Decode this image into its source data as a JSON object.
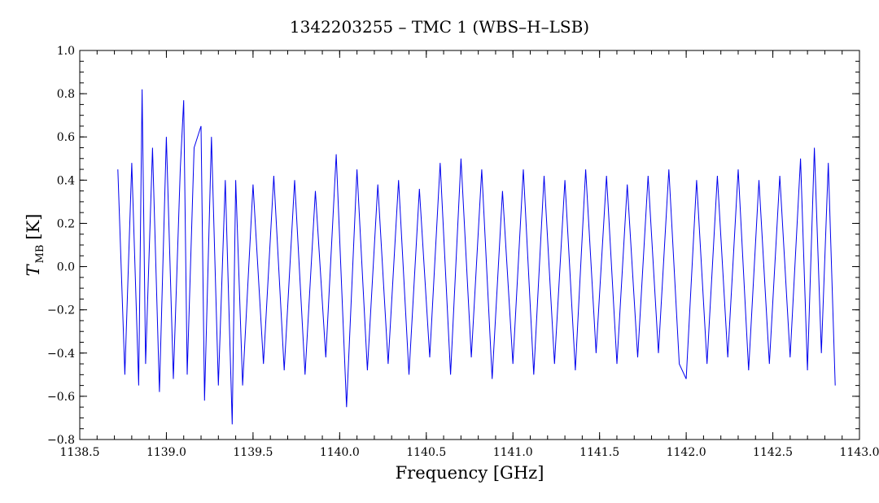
{
  "chart_data": {
    "type": "line",
    "title": "1342203255 – TMC 1 (WBS–H–LSB)",
    "xlabel": "Frequency [GHz]",
    "ylabel_main": "T",
    "ylabel_sub": "MB",
    "ylabel_unit": "[K]",
    "xlim": [
      1138.5,
      1143.0
    ],
    "ylim": [
      -0.8,
      1.0
    ],
    "x_ticks": [
      1138.5,
      1139.0,
      1139.5,
      1140.0,
      1140.5,
      1141.0,
      1141.5,
      1142.0,
      1142.5,
      1143.0
    ],
    "x_tick_labels": [
      "1138.5",
      "1139.0",
      "1139.5",
      "1140.0",
      "1140.5",
      "1141.0",
      "1141.5",
      "1142.0",
      "1142.5",
      "1143.0"
    ],
    "y_ticks": [
      -0.8,
      -0.6,
      -0.4,
      -0.2,
      0.0,
      0.2,
      0.4,
      0.6,
      0.8,
      1.0
    ],
    "y_tick_labels": [
      "−0.8",
      "−0.6",
      "−0.4",
      "−0.2",
      "0.0",
      "0.2",
      "0.4",
      "0.6",
      "0.8",
      "1.0"
    ],
    "grid": false,
    "series": [
      {
        "color": "#0000ee",
        "x": [
          1138.72,
          1138.76,
          1138.8,
          1138.84,
          1138.86,
          1138.88,
          1138.92,
          1138.96,
          1139.0,
          1139.04,
          1139.08,
          1139.1,
          1139.12,
          1139.16,
          1139.2,
          1139.22,
          1139.26,
          1139.3,
          1139.34,
          1139.38,
          1139.4,
          1139.44,
          1139.5,
          1139.56,
          1139.62,
          1139.68,
          1139.74,
          1139.8,
          1139.86,
          1139.92,
          1139.98,
          1140.04,
          1140.1,
          1140.16,
          1140.22,
          1140.28,
          1140.34,
          1140.4,
          1140.46,
          1140.52,
          1140.58,
          1140.64,
          1140.7,
          1140.76,
          1140.82,
          1140.88,
          1140.94,
          1141.0,
          1141.06,
          1141.12,
          1141.18,
          1141.24,
          1141.3,
          1141.36,
          1141.42,
          1141.48,
          1141.54,
          1141.6,
          1141.66,
          1141.72,
          1141.78,
          1141.84,
          1141.9,
          1141.96,
          1142.0,
          1142.06,
          1142.12,
          1142.18,
          1142.24,
          1142.3,
          1142.36,
          1142.42,
          1142.48,
          1142.54,
          1142.6,
          1142.66,
          1142.7,
          1142.74,
          1142.78,
          1142.82,
          1142.86
        ],
        "y": [
          0.45,
          -0.5,
          0.48,
          -0.55,
          0.82,
          -0.45,
          0.55,
          -0.58,
          0.6,
          -0.52,
          0.45,
          0.77,
          -0.5,
          0.55,
          0.65,
          -0.62,
          0.6,
          -0.55,
          0.4,
          -0.73,
          0.4,
          -0.55,
          0.38,
          -0.45,
          0.42,
          -0.48,
          0.4,
          -0.5,
          0.35,
          -0.42,
          0.52,
          -0.65,
          0.45,
          -0.48,
          0.38,
          -0.45,
          0.4,
          -0.5,
          0.36,
          -0.42,
          0.48,
          -0.5,
          0.5,
          -0.42,
          0.45,
          -0.52,
          0.35,
          -0.45,
          0.45,
          -0.5,
          0.42,
          -0.45,
          0.4,
          -0.48,
          0.45,
          -0.4,
          0.42,
          -0.45,
          0.38,
          -0.42,
          0.42,
          -0.4,
          0.45,
          -0.45,
          -0.52,
          0.4,
          -0.45,
          0.42,
          -0.42,
          0.45,
          -0.48,
          0.4,
          -0.45,
          0.42,
          -0.42,
          0.5,
          -0.48,
          0.55,
          -0.4,
          0.48,
          -0.55
        ]
      }
    ]
  }
}
